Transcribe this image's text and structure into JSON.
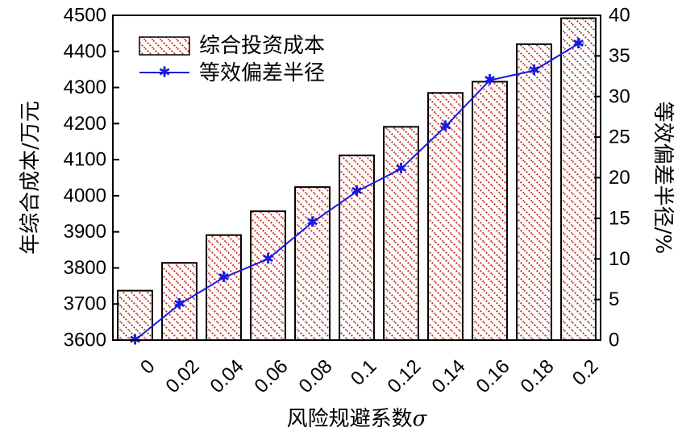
{
  "chart_data": {
    "type": "bar",
    "categories": [
      "0",
      "0.02",
      "0.04",
      "0.06",
      "0.08",
      "0.1",
      "0.12",
      "0.14",
      "0.16",
      "0.18",
      "0.2"
    ],
    "series": [
      {
        "name": "综合投资成本",
        "type": "bar",
        "axis": "left",
        "values": [
          3737,
          3814,
          3891,
          3957,
          4024,
          4112,
          4191,
          4285,
          4316,
          4420,
          4492
        ]
      },
      {
        "name": "等效偏差半径",
        "type": "line",
        "axis": "right",
        "values": [
          0,
          4.4,
          7.7,
          10,
          14.5,
          18.3,
          21.1,
          26.3,
          32,
          33.2,
          36.5
        ]
      }
    ],
    "xlabel": "风险规避系数",
    "xlabel_symbol": "σ",
    "ylabel": "年综合成本/万元",
    "y2label": "等效偏差半径/%",
    "ylim": [
      3600,
      4500
    ],
    "yticks": [
      3600,
      3700,
      3800,
      3900,
      4000,
      4100,
      4200,
      4300,
      4400,
      4500
    ],
    "y2lim": [
      0,
      40
    ],
    "y2ticks": [
      0,
      5,
      10,
      15,
      20,
      25,
      30,
      35,
      40
    ],
    "legend_position": "top-left",
    "grid": false,
    "colors": {
      "bar_hatch": "#c0392b",
      "line": "#1a1adf",
      "axis": "#000000"
    }
  }
}
